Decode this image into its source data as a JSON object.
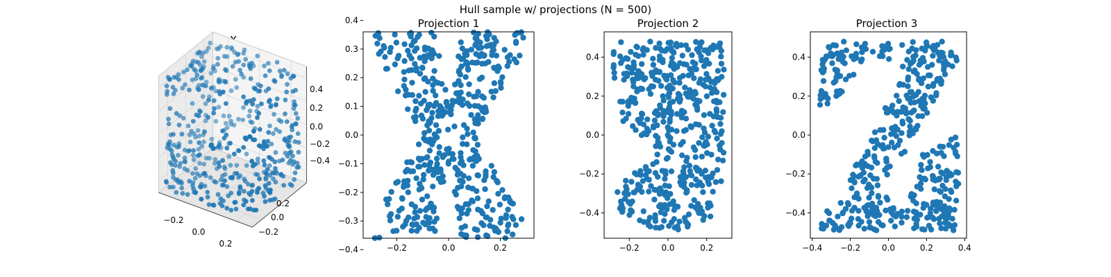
{
  "figure": {
    "suptitle": "Hull sample w/ projections (N = 500)"
  },
  "colors": {
    "points": "#1f77b4",
    "points_3d": "#1f77b4",
    "axes": "#000000",
    "pane": "#f2f2f2",
    "grid": "#d6d6d6"
  },
  "chart_data": [
    {
      "type": "scatter3d",
      "title": "X",
      "n_points": 500,
      "x_ticks": [
        "−0.2",
        "0.0",
        "0.2"
      ],
      "y_ticks": [
        "−0.2",
        "0.0",
        "0.2"
      ],
      "z_ticks": [
        "0.4",
        "0.2",
        "0.0",
        "−0.2",
        "−0.4"
      ],
      "xlim": [
        -0.3,
        0.3
      ],
      "ylim": [
        -0.3,
        0.3
      ],
      "zlim": [
        -0.5,
        0.5
      ],
      "grid": true
    },
    {
      "type": "scatter",
      "title": "Projection 1",
      "shape": "X",
      "n_points": 500,
      "xlim": [
        -0.33,
        0.33
      ],
      "ylim": [
        -0.36,
        0.36
      ],
      "x_ticks": [
        "−0.2",
        "0.0",
        "0.2"
      ],
      "y_ticks": [
        "0.4",
        "0.3",
        "0.2",
        "0.1",
        "0.0",
        "−0.1",
        "−0.2",
        "−0.3",
        "−0.4"
      ]
    },
    {
      "type": "scatter",
      "title": "Projection 2",
      "shape": "S",
      "n_points": 500,
      "xlim": [
        -0.33,
        0.33
      ],
      "ylim": [
        -0.53,
        0.53
      ],
      "x_ticks": [
        "−0.2",
        "0.0",
        "0.2"
      ],
      "y_ticks": [
        "0.4",
        "0.2",
        "0.0",
        "−0.2",
        "−0.4"
      ]
    },
    {
      "type": "scatter",
      "title": "Projection 3",
      "shape": "Z",
      "n_points": 500,
      "xlim": [
        -0.41,
        0.41
      ],
      "ylim": [
        -0.53,
        0.53
      ],
      "x_ticks": [
        "−0.4",
        "−0.2",
        "0.0",
        "0.2",
        "0.4"
      ],
      "y_ticks": [
        "0.4",
        "0.2",
        "0.0",
        "−0.2",
        "−0.4"
      ]
    }
  ]
}
